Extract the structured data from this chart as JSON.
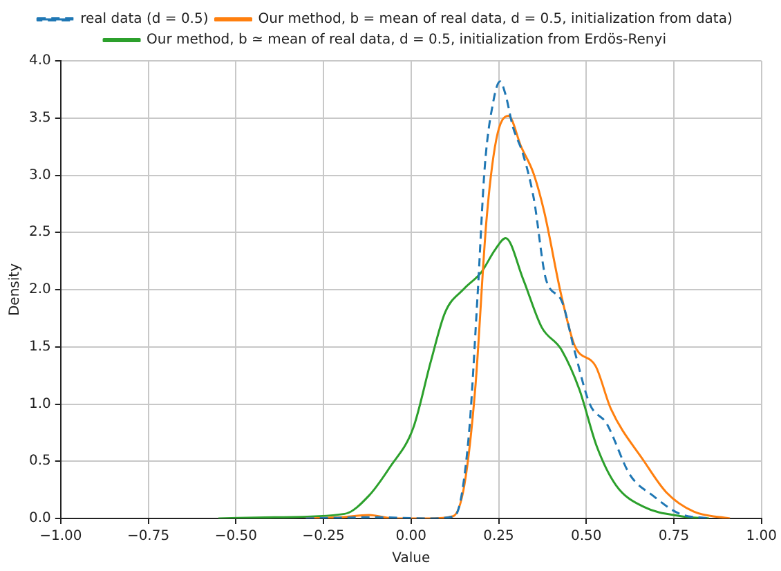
{
  "chart_data": {
    "type": "line",
    "xlabel": "Value",
    "ylabel": "Density",
    "xlim": [
      -1,
      1
    ],
    "ylim": [
      0,
      4
    ],
    "xticks": [
      {
        "value": -1,
        "label": "−1.00"
      },
      {
        "value": -0.75,
        "label": "−0.75"
      },
      {
        "value": -0.5,
        "label": "−0.50"
      },
      {
        "value": -0.25,
        "label": "−0.25"
      },
      {
        "value": 0,
        "label": "0.00"
      },
      {
        "value": 0.25,
        "label": "0.25"
      },
      {
        "value": 0.5,
        "label": "0.50"
      },
      {
        "value": 0.75,
        "label": "0.75"
      },
      {
        "value": 1,
        "label": "1.00"
      }
    ],
    "yticks": [
      {
        "value": 0,
        "label": "0.0"
      },
      {
        "value": 0.5,
        "label": "0.5"
      },
      {
        "value": 1,
        "label": "1.0"
      },
      {
        "value": 1.5,
        "label": "1.5"
      },
      {
        "value": 2,
        "label": "2.0"
      },
      {
        "value": 2.5,
        "label": "2.5"
      },
      {
        "value": 3,
        "label": "3.0"
      },
      {
        "value": 3.5,
        "label": "3.5"
      },
      {
        "value": 4,
        "label": "4.0"
      }
    ],
    "grid": true,
    "legend": "top",
    "marker": "none",
    "series": [
      {
        "name": "real data (d = 0.5)",
        "color": "#1f77b4",
        "line_style": "dashed",
        "x": [
          -0.3,
          -0.1,
          0.05,
          0.124,
          0.164,
          0.19,
          0.21,
          0.235,
          0.254,
          0.27,
          0.29,
          0.32,
          0.35,
          0.385,
          0.43,
          0.467,
          0.51,
          0.558,
          0.625,
          0.69,
          0.767,
          0.85
        ],
        "values": [
          0,
          0.01,
          0,
          0.02,
          0.7,
          1.96,
          3.06,
          3.65,
          3.82,
          3.7,
          3.43,
          3.18,
          2.8,
          2.09,
          1.9,
          1.46,
          1.0,
          0.83,
          0.38,
          0.2,
          0.04,
          0
        ]
      },
      {
        "name": "Our method, b = mean of real data, d = 0.5, initialization from data)",
        "color": "#ff7f0e",
        "line_style": "solid",
        "x": [
          -0.3,
          -0.2,
          -0.12,
          -0.05,
          0.05,
          0.12,
          0.152,
          0.183,
          0.215,
          0.243,
          0.278,
          0.314,
          0.349,
          0.38,
          0.428,
          0.467,
          0.527,
          0.57,
          0.665,
          0.728,
          0.807,
          0.91
        ],
        "values": [
          0,
          0.01,
          0.03,
          0,
          0,
          0.02,
          0.29,
          1.13,
          2.6,
          3.31,
          3.52,
          3.25,
          3.02,
          2.68,
          1.96,
          1.51,
          1.33,
          0.96,
          0.5,
          0.23,
          0.06,
          0
        ]
      },
      {
        "name": "Our method, b ≃ mean of real data, d = 0.5, initialization from Erdös-Renyi",
        "color": "#2ca02c",
        "line_style": "solid",
        "x": [
          -0.55,
          -0.39,
          -0.19,
          -0.12,
          -0.06,
          0.006,
          0.057,
          0.097,
          0.152,
          0.2,
          0.24,
          0.27,
          0.32,
          0.373,
          0.428,
          0.48,
          0.53,
          0.585,
          0.665,
          0.77,
          0.85
        ],
        "values": [
          0,
          0.01,
          0.04,
          0.2,
          0.45,
          0.79,
          1.38,
          1.8,
          2.01,
          2.15,
          2.35,
          2.45,
          2.09,
          1.67,
          1.48,
          1.13,
          0.63,
          0.29,
          0.1,
          0.02,
          0
        ]
      }
    ]
  }
}
